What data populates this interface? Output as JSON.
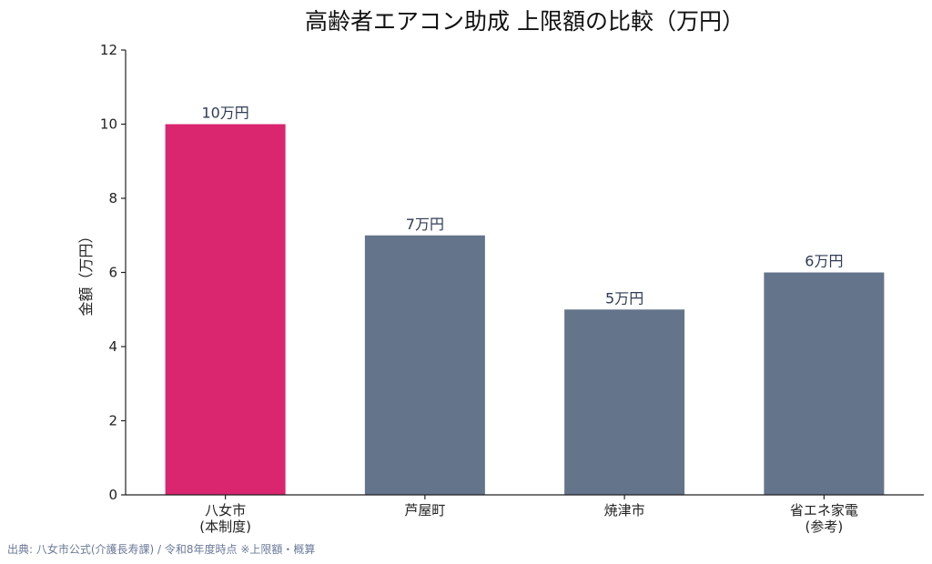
{
  "chart_data": {
    "type": "bar",
    "title": "高齢者エアコン助成 上限額の比較（万円）",
    "ylabel": "金額（万円）",
    "xlabel": "",
    "ylim": [
      0,
      12
    ],
    "yticks": [
      0,
      2,
      4,
      6,
      8,
      10,
      12
    ],
    "categories": [
      [
        "八女市",
        "(本制度)"
      ],
      [
        "芦屋町"
      ],
      [
        "焼津市"
      ],
      [
        "省エネ家電",
        "(参考)"
      ]
    ],
    "values": [
      10,
      7,
      5,
      6
    ],
    "value_labels": [
      "10万円",
      "7万円",
      "5万円",
      "6万円"
    ],
    "colors": [
      "#d9266f",
      "#64748b",
      "#64748b",
      "#64748b"
    ],
    "grid": false,
    "legend": "none"
  },
  "source": "出典: 八女市公式(介護長寿課) / 令和8年度時点 ※上限額・概算"
}
